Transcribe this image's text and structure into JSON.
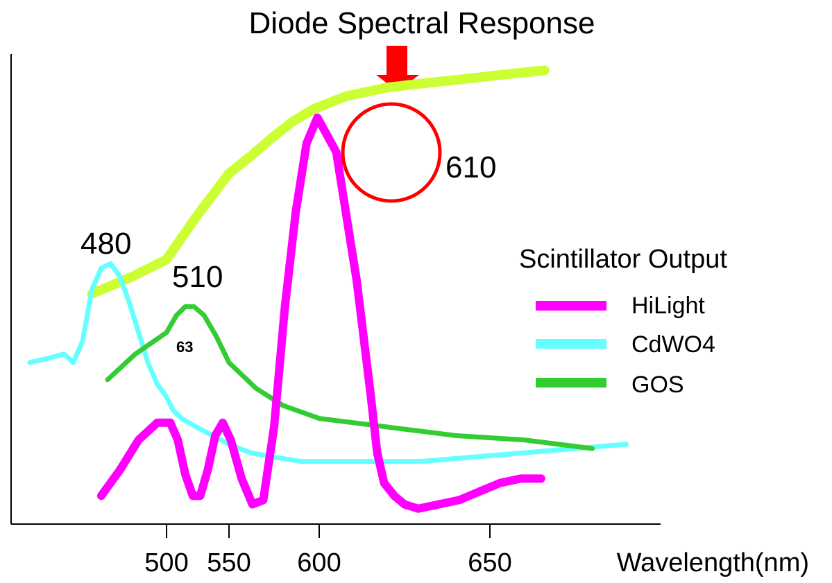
{
  "chart_data": {
    "type": "line",
    "title": "Diode Spectral Response",
    "xlabel": "Wavelength(nm)",
    "ylabel": "",
    "x_ticks": [
      500,
      550,
      600,
      650
    ],
    "x_tick_labels": [
      "500",
      "550",
      "600",
      "650"
    ],
    "xlim": [
      450,
      700
    ],
    "ylim": [
      0,
      1
    ],
    "grid": false,
    "legend": {
      "title": "Scintillator Output",
      "placement": "right",
      "entries": [
        "HiLight",
        "CdWO4",
        "GOS"
      ]
    },
    "peak_labels": [
      "480",
      "510",
      "610"
    ],
    "stray_text": "63",
    "diode_curve": {
      "color": "#ccff33",
      "x": [
        476,
        489,
        500,
        512,
        524,
        537,
        550,
        562,
        573,
        585,
        597,
        608,
        620,
        631,
        643,
        654,
        666
      ],
      "y": [
        0.51,
        0.55,
        0.59,
        0.64,
        0.69,
        0.74,
        0.79,
        0.83,
        0.87,
        0.91,
        0.94,
        0.97,
        0.99,
        1.0,
        1.01,
        1.02,
        1.03
      ]
    },
    "series": [
      {
        "name": "HiLight",
        "color": "#ff00ff",
        "x": [
          479,
          485,
          491,
          497,
          503,
          509,
          515,
          521,
          527,
          533,
          539,
          545,
          551,
          557,
          563,
          569,
          575,
          581,
          587,
          593,
          599,
          605,
          611,
          615,
          617,
          619,
          622,
          625,
          629,
          635,
          641,
          647,
          653,
          659,
          665
        ],
        "y": [
          0.04,
          0.1,
          0.17,
          0.21,
          0.21,
          0.17,
          0.09,
          0.04,
          0.04,
          0.1,
          0.18,
          0.21,
          0.17,
          0.08,
          0.02,
          0.03,
          0.2,
          0.48,
          0.7,
          0.86,
          0.92,
          0.84,
          0.54,
          0.28,
          0.14,
          0.07,
          0.04,
          0.02,
          0.01,
          0.02,
          0.03,
          0.05,
          0.07,
          0.08,
          0.08
        ]
      },
      {
        "name": "CdWO4",
        "color": "#66ffff",
        "x": [
          456,
          462,
          467,
          470,
          473,
          476,
          479,
          482,
          485,
          488,
          491,
          494,
          497,
          500,
          505,
          512,
          524,
          537,
          550,
          562,
          575,
          590,
          605,
          620,
          630,
          645,
          660,
          675,
          690
        ],
        "y": [
          0.35,
          0.36,
          0.37,
          0.35,
          0.4,
          0.52,
          0.57,
          0.58,
          0.55,
          0.49,
          0.42,
          0.35,
          0.3,
          0.27,
          0.24,
          0.22,
          0.2,
          0.18,
          0.16,
          0.14,
          0.13,
          0.12,
          0.12,
          0.12,
          0.12,
          0.13,
          0.14,
          0.15,
          0.16
        ]
      },
      {
        "name": "GOS",
        "color": "#33cc33",
        "x": [
          481,
          490,
          500,
          508,
          515,
          522,
          530,
          540,
          550,
          565,
          580,
          600,
          620,
          640,
          660,
          680
        ],
        "y": [
          0.31,
          0.37,
          0.42,
          0.46,
          0.48,
          0.48,
          0.46,
          0.41,
          0.35,
          0.29,
          0.25,
          0.22,
          0.2,
          0.18,
          0.17,
          0.15
        ]
      }
    ]
  }
}
